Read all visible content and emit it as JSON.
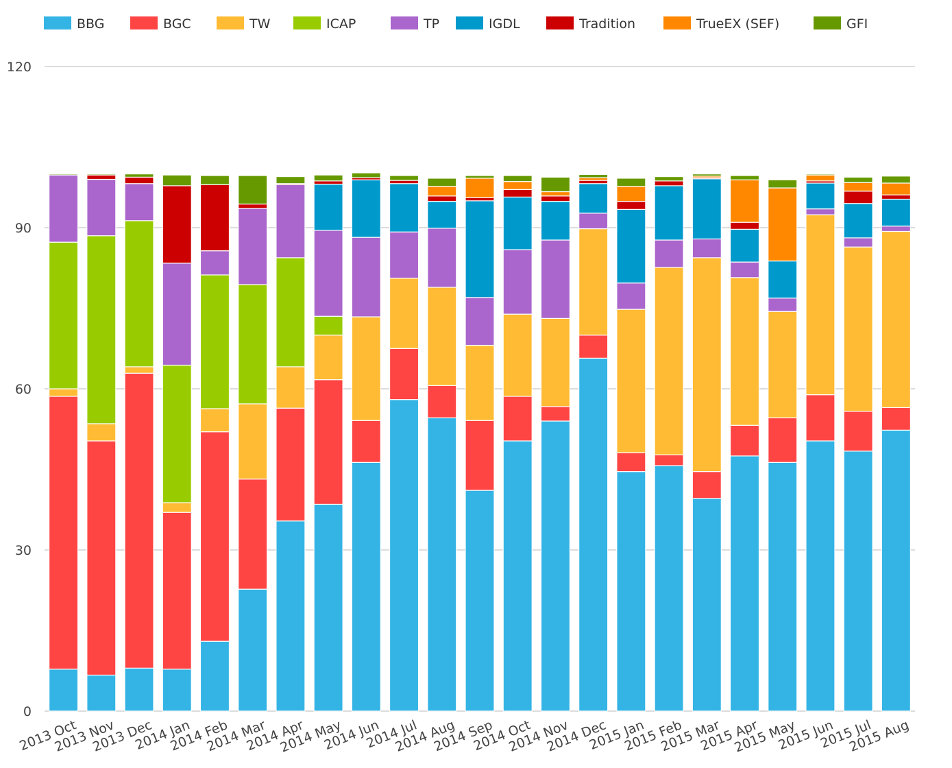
{
  "chart_data": {
    "type": "bar",
    "stacked": true,
    "legend": "top",
    "grid": true,
    "ylim": [
      0,
      120
    ],
    "yticks": [
      0,
      30,
      60,
      90,
      120
    ],
    "categories": [
      "2013 Oct",
      "2013 Nov",
      "2013 Dec",
      "2014 Jan",
      "2014 Feb",
      "2014 Mar",
      "2014 Apr",
      "2014 May",
      "2014 Jun",
      "2014 Jul",
      "2014 Aug",
      "2014 Sep",
      "2014 Oct",
      "2014 Nov",
      "2014 Dec",
      "2015 Jan",
      "2015 Feb",
      "2015 Mar",
      "2015 Apr",
      "2015 May",
      "2015 Jun",
      "2015 Jul",
      "2015 Aug"
    ],
    "series": [
      {
        "name": "BBG",
        "color": "#33B4E5",
        "values": [
          7.8,
          6.7,
          8.0,
          7.8,
          13.0,
          22.7,
          35.4,
          38.5,
          46.3,
          58.0,
          54.6,
          41.1,
          50.3,
          54.0,
          65.7,
          44.6,
          45.7,
          39.6,
          47.5,
          46.3,
          50.3,
          48.4,
          52.3
        ]
      },
      {
        "name": "BGC",
        "color": "#FF4444",
        "values": [
          50.8,
          43.6,
          54.9,
          29.2,
          39.0,
          20.5,
          21.0,
          23.2,
          7.8,
          9.5,
          6.0,
          13.0,
          8.3,
          2.7,
          4.3,
          3.5,
          2.0,
          5.0,
          5.7,
          8.3,
          8.6,
          7.4,
          4.2
        ]
      },
      {
        "name": "TW",
        "color": "#FFBB33",
        "values": [
          1.4,
          3.2,
          1.2,
          1.8,
          4.3,
          14.0,
          7.7,
          8.3,
          19.3,
          13.1,
          18.3,
          14.0,
          15.3,
          16.4,
          19.8,
          26.7,
          34.9,
          39.8,
          27.5,
          19.8,
          33.5,
          30.6,
          32.8
        ]
      },
      {
        "name": "ICAP",
        "color": "#99CC00",
        "values": [
          27.3,
          35.0,
          27.2,
          25.6,
          24.9,
          22.2,
          20.3,
          3.5,
          0,
          0,
          0,
          0,
          0,
          0,
          0,
          0,
          0,
          0,
          0,
          0,
          0,
          0,
          0
        ]
      },
      {
        "name": "TP",
        "color": "#AA66CC",
        "values": [
          12.5,
          10.5,
          6.9,
          19.0,
          4.5,
          14.2,
          13.6,
          16.0,
          14.8,
          8.6,
          11.0,
          8.9,
          12.0,
          14.6,
          2.9,
          4.9,
          5.1,
          3.5,
          2.9,
          2.5,
          1.1,
          1.7,
          1.0
        ]
      },
      {
        "name": "IGDL",
        "color": "#0099CC",
        "values": [
          0,
          0,
          0,
          0,
          0,
          0,
          0,
          8.6,
          10.7,
          9.0,
          5.0,
          18.0,
          9.8,
          7.2,
          5.5,
          13.7,
          10.1,
          11.2,
          6.1,
          6.9,
          4.8,
          6.4,
          5.0
        ]
      },
      {
        "name": "Tradition",
        "color": "#CC0000",
        "values": [
          0,
          0.8,
          1.2,
          14.4,
          12.3,
          0.8,
          0.2,
          0.6,
          0.4,
          0.6,
          1.0,
          0.6,
          1.4,
          1.0,
          0.6,
          1.5,
          0.9,
          0.2,
          1.3,
          0,
          0.4,
          2.3,
          0.8
        ]
      },
      {
        "name": "TrueEX (SEF)",
        "color": "#FF8800",
        "values": [
          0,
          0,
          0,
          0,
          0,
          0,
          0,
          0,
          0,
          0,
          1.8,
          3.6,
          1.5,
          0.8,
          0.5,
          2.8,
          0,
          0.3,
          7.9,
          13.6,
          1.1,
          1.6,
          2.2
        ]
      },
      {
        "name": "GFI",
        "color": "#669900",
        "values": [
          0.2,
          0.2,
          0.6,
          2.0,
          1.7,
          5.3,
          1.3,
          1.1,
          0.9,
          0.9,
          1.5,
          0.5,
          1.1,
          2.7,
          0.6,
          1.5,
          0.8,
          0.4,
          0.8,
          1.5,
          0.2,
          1.0,
          1.3
        ]
      }
    ]
  }
}
